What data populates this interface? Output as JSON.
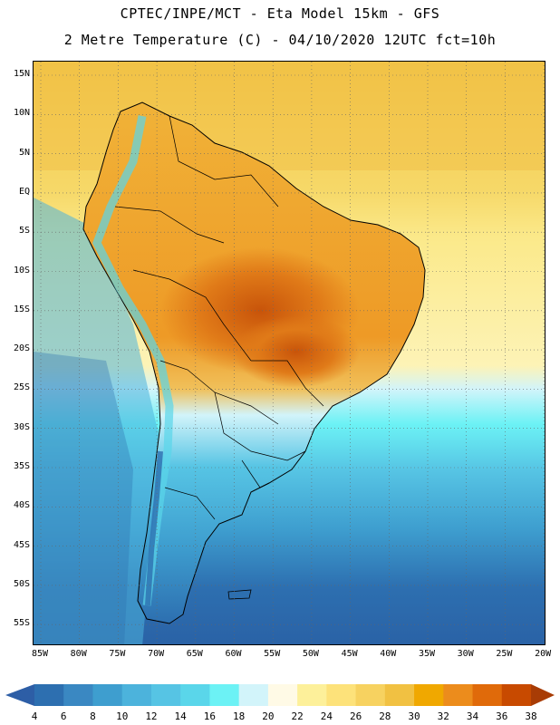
{
  "header": {
    "line1": "CPTEC/INPE/MCT -  Eta Model 15km - GFS",
    "line2": "2 Metre Temperature (C) - 04/10/2020 12UTC fct=10h"
  },
  "map": {
    "lat_labels": [
      "15N",
      "10N",
      "5N",
      "EQ",
      "5S",
      "10S",
      "15S",
      "20S",
      "25S",
      "30S",
      "35S",
      "40S",
      "45S",
      "50S",
      "55S"
    ],
    "lon_labels": [
      "85W",
      "80W",
      "75W",
      "70W",
      "65W",
      "60W",
      "55W",
      "50W",
      "45W",
      "40W",
      "35W",
      "30W",
      "25W",
      "20W"
    ]
  },
  "colorbar": {
    "labels": [
      "4",
      "6",
      "8",
      "10",
      "12",
      "14",
      "16",
      "18",
      "20",
      "22",
      "24",
      "26",
      "28",
      "30",
      "32",
      "34",
      "36",
      "38"
    ],
    "colors": [
      "#2d6fb0",
      "#3a88c2",
      "#3e9ecf",
      "#4cb3dc",
      "#56c4e4",
      "#5ad6ea",
      "#6cf2f5",
      "#d2f4fa",
      "#fffae6",
      "#fdf09a",
      "#fde27a",
      "#f7d260",
      "#f1c142",
      "#f0a800",
      "#ec8c1c",
      "#e06a0a",
      "#c84a00",
      "#a83c05"
    ],
    "min_arrow_color": "#2d5ea6",
    "max_arrow_color": "#a83c05"
  }
}
